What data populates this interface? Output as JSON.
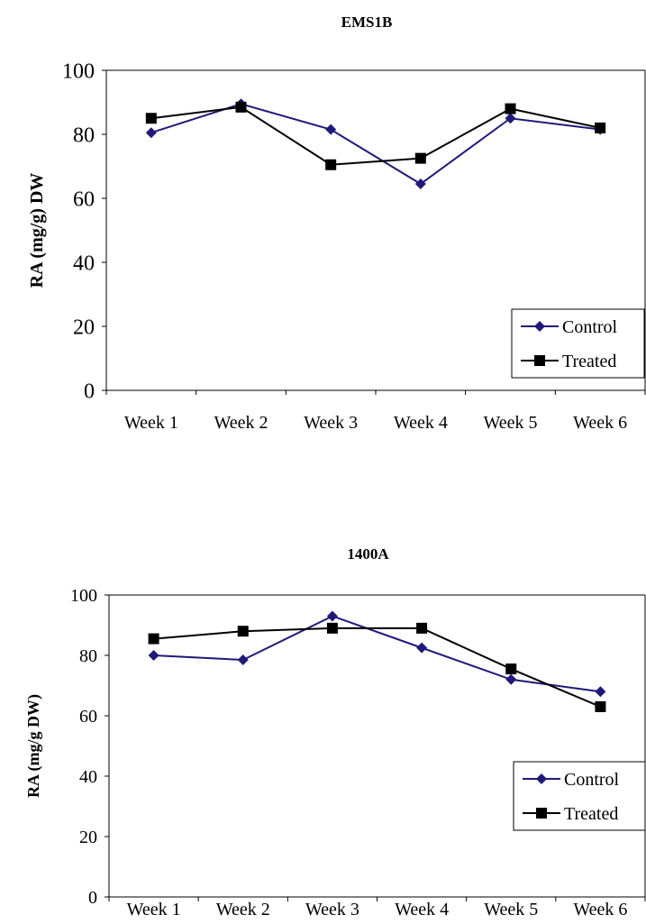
{
  "chart_data": [
    {
      "type": "line",
      "title": "EMS1B",
      "ylabel": "RA (mg/g) DW",
      "xlabel": "",
      "categories": [
        "Week 1",
        "Week 2",
        "Week 3",
        "Week 4",
        "Week 5",
        "Week 6"
      ],
      "ylim": [
        0,
        100
      ],
      "yticks": [
        "0",
        "20",
        "40",
        "60",
        "80",
        "100"
      ],
      "legend_position": "bottom-right",
      "series": [
        {
          "name": "Control",
          "color": "#1f1a7a",
          "marker": "diamond",
          "values": [
            80.5,
            89.5,
            81.5,
            64.5,
            85.0,
            81.5
          ]
        },
        {
          "name": "Treated",
          "color": "#000000",
          "marker": "square",
          "values": [
            85.0,
            88.5,
            70.5,
            72.5,
            88.0,
            82.0
          ]
        }
      ]
    },
    {
      "type": "line",
      "title": "1400A",
      "ylabel": "RA (mg/g DW)",
      "xlabel": "",
      "categories": [
        "Week 1",
        "Week 2",
        "Week 3",
        "Week 4",
        "Week 5",
        "Week 6"
      ],
      "ylim": [
        0,
        100
      ],
      "yticks": [
        "0",
        "20",
        "40",
        "60",
        "80",
        "100"
      ],
      "legend_position": "bottom-right",
      "series": [
        {
          "name": "Control",
          "color": "#1f1a7a",
          "marker": "diamond",
          "values": [
            80.0,
            78.5,
            93.0,
            82.5,
            72.0,
            68.0
          ]
        },
        {
          "name": "Treated",
          "color": "#000000",
          "marker": "square",
          "values": [
            85.5,
            88.0,
            89.0,
            89.0,
            75.5,
            63.0
          ]
        }
      ]
    }
  ]
}
